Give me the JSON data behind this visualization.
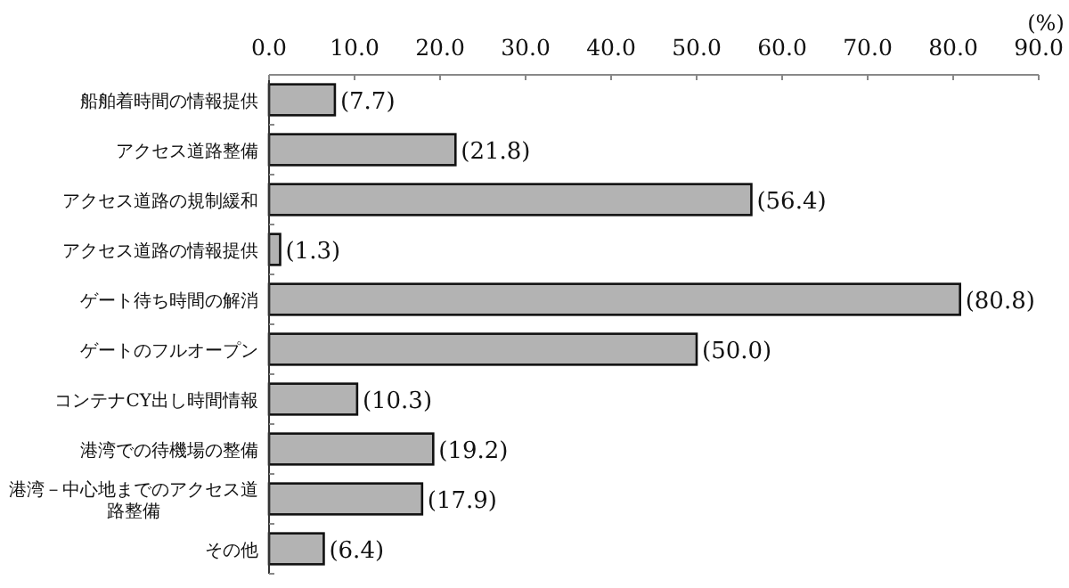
{
  "chart_data": {
    "type": "bar",
    "orientation": "horizontal",
    "xlabel": "(%)",
    "categories": [
      "船舶着時間の情報提供",
      "アクセス道路整備",
      "アクセス道路の規制緩和",
      "アクセス道路の情報提供",
      "ゲート待ち時間の解消",
      "ゲートのフルオープン",
      "コンテナCY出し時間情報",
      "港湾での待機場の整備",
      "港湾－中心地までのアクセス道路整備",
      "その他"
    ],
    "values": [
      7.7,
      21.8,
      56.4,
      1.3,
      80.8,
      50.0,
      10.3,
      19.2,
      17.9,
      6.4
    ],
    "value_labels": [
      "(7.7)",
      "(21.8)",
      "(56.4)",
      "(1.3)",
      "(80.8)",
      "(50.0)",
      "(10.3)",
      "(19.2)",
      "(17.9)",
      "(6.4)"
    ],
    "color": "#b3b3b3",
    "xlim": [
      0,
      90
    ],
    "xticks": [
      {
        "value": 0,
        "label": "0.0"
      },
      {
        "value": 10,
        "label": "10.0"
      },
      {
        "value": 20,
        "label": "20.0"
      },
      {
        "value": 30,
        "label": "30.0"
      },
      {
        "value": 40,
        "label": "40.0"
      },
      {
        "value": 50,
        "label": "50.0"
      },
      {
        "value": 60,
        "label": "60.0"
      },
      {
        "value": 70,
        "label": "70.0"
      },
      {
        "value": 80,
        "label": "80.0"
      },
      {
        "value": 90,
        "label": "90.0"
      }
    ],
    "grid": false
  }
}
